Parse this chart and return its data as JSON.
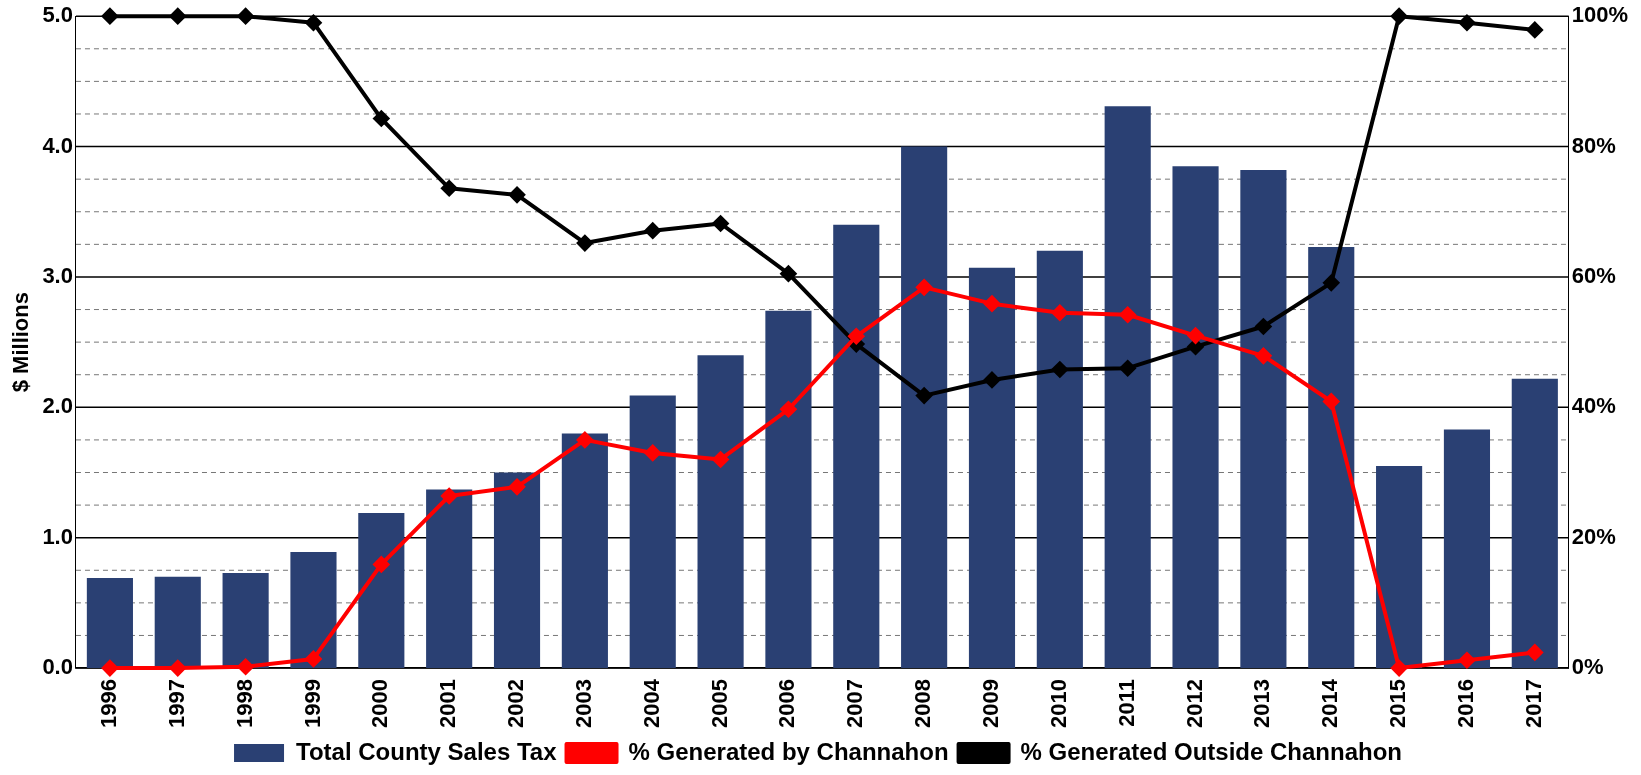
{
  "chart_data": {
    "type": "bar",
    "ylabel": "$ Millions",
    "categories": [
      "1996",
      "1997",
      "1998",
      "1999",
      "2000",
      "2001",
      "2002",
      "2003",
      "2004",
      "2005",
      "2006",
      "2007",
      "2008",
      "2009",
      "2010",
      "2011",
      "2012",
      "2013",
      "2014",
      "2015",
      "2016",
      "2017"
    ],
    "series": [
      {
        "name": "Total County Sales Tax",
        "color": "#2a4073",
        "values": [
          0.69,
          0.7,
          0.73,
          0.89,
          1.19,
          1.37,
          1.5,
          1.8,
          2.09,
          2.4,
          2.74,
          3.4,
          4.0,
          3.07,
          3.2,
          4.31,
          3.85,
          3.82,
          3.23,
          1.55,
          1.83,
          2.22
        ]
      },
      {
        "name": "% Generated by Channahon",
        "type": "line",
        "axis": "y2",
        "color": "#ff0000",
        "marker": "diamond",
        "values": [
          0,
          0,
          0.2,
          1.4,
          15.9,
          26.4,
          27.8,
          35.0,
          33.0,
          32.0,
          39.7,
          50.9,
          58.4,
          55.9,
          54.5,
          54.2,
          51.0,
          47.9,
          40.9,
          0,
          1.2,
          2.4
        ]
      },
      {
        "name": "% Generated Outside Channahon",
        "type": "line",
        "axis": "y2",
        "color": "#000000",
        "marker": "diamond",
        "values": [
          100,
          100,
          100,
          99,
          84.3,
          73.6,
          72.6,
          65.2,
          67.1,
          68.2,
          60.5,
          49.7,
          41.8,
          44.2,
          45.8,
          46.0,
          49.3,
          52.4,
          59.1,
          100,
          99.0,
          97.9
        ]
      }
    ],
    "ylim": [
      0,
      5
    ],
    "yticks": [
      {
        "value": 0,
        "label": "0.0"
      },
      {
        "value": 0.25,
        "label": null
      },
      {
        "value": 0.5,
        "label": null
      },
      {
        "value": 0.75,
        "label": null
      },
      {
        "value": 1,
        "label": "1.0"
      },
      {
        "value": 1.25,
        "label": null
      },
      {
        "value": 1.5,
        "label": null
      },
      {
        "value": 1.75,
        "label": null
      },
      {
        "value": 2,
        "label": "2.0"
      },
      {
        "value": 2.25,
        "label": null
      },
      {
        "value": 2.5,
        "label": null
      },
      {
        "value": 2.75,
        "label": null
      },
      {
        "value": 3,
        "label": "3.0"
      },
      {
        "value": 3.25,
        "label": null
      },
      {
        "value": 3.5,
        "label": null
      },
      {
        "value": 3.75,
        "label": null
      },
      {
        "value": 4,
        "label": "4.0"
      },
      {
        "value": 4.25,
        "label": null
      },
      {
        "value": 4.5,
        "label": null
      },
      {
        "value": 4.75,
        "label": null
      },
      {
        "value": 5,
        "label": "5.0"
      }
    ],
    "y2lim": [
      0,
      100
    ],
    "y2ticks": [
      {
        "value": 0,
        "label": "0%"
      },
      {
        "value": 20,
        "label": "20%"
      },
      {
        "value": 40,
        "label": "40%"
      },
      {
        "value": 60,
        "label": "60%"
      },
      {
        "value": 80,
        "label": "80%"
      },
      {
        "value": 100,
        "label": "100%"
      }
    ],
    "grid": "y",
    "legend": "bottom",
    "line_style": "solid"
  }
}
